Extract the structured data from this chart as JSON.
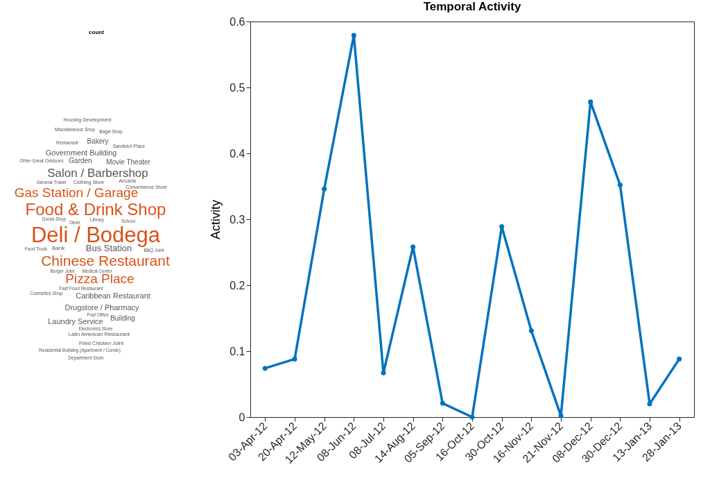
{
  "chart_data": [
    {
      "type": "other",
      "title": "count",
      "annotations": [
        "Housing Development",
        "Miscellaneous Shop",
        "Bagel Shop",
        "Restaurant",
        "Bakery",
        "Sandwich Place",
        "Government Building",
        "Other Great Outdoors",
        "Garden",
        "Movie Theater",
        "Salon / Barbershop",
        "General Travel",
        "Clothing Store",
        "Arcade",
        "Convenience Store",
        "Gas Station / Garage",
        "Food & Drink Shop",
        "Donut Shop",
        "Library",
        "School",
        "Deli / Bodega",
        "Diner",
        "Bank",
        "Bus Station",
        "BBQ Joint",
        "Food Truck",
        "Chinese Restaurant",
        "Burger Joint",
        "Medical Center",
        "Pizza Place",
        "Fast Food Restaurant",
        "Cosmetics Shop",
        "Caribbean Restaurant",
        "Drugstore / Pharmacy",
        "Post Office",
        "Building",
        "Laundry Service",
        "Electronics Store",
        "Latin American Restaurant",
        "Fried Chicken Joint",
        "Residential Building (Apartment / Condo)",
        "Department Store"
      ],
      "colors": [
        "#555555",
        "#555555",
        "#555555",
        "#555555",
        "#555555",
        "#555555",
        "#555555",
        "#555555",
        "#555555",
        "#555555",
        "#555555",
        "#555555",
        "#555555",
        "#555555",
        "#555555",
        "#d95319",
        "#d95319",
        "#555555",
        "#555555",
        "#555555",
        "#d95319",
        "#555555",
        "#555555",
        "#555555",
        "#555555",
        "#555555",
        "#d95319",
        "#555555",
        "#555555",
        "#d95319",
        "#555555",
        "#555555",
        "#555555",
        "#555555",
        "#555555",
        "#555555",
        "#555555",
        "#555555",
        "#555555",
        "#555555",
        "#555555",
        "#555555"
      ]
    },
    {
      "type": "line",
      "title": "Temporal Activity",
      "ylabel": "Activity",
      "categories": [
        "03-Apr-12",
        "20-Apr-12",
        "12-May-12",
        "08-Jun-12",
        "08-Jul-12",
        "14-Aug-12",
        "05-Sep-12",
        "16-Oct-12",
        "30-Oct-12",
        "16-Nov-12",
        "21-Nov-12",
        "08-Dec-12",
        "30-Dec-12",
        "13-Jan-13",
        "28-Jan-13"
      ],
      "series": [
        {
          "color": "#0072bd",
          "values": [
            0.074,
            0.088,
            0.346,
            0.579,
            0.067,
            0.258,
            0.021,
            0.0,
            0.289,
            0.131,
            0.002,
            0.478,
            0.352,
            0.02,
            0.088
          ]
        }
      ],
      "ylim": [
        0,
        0.6
      ],
      "yticks": [
        0,
        0.1,
        0.2,
        0.3,
        0.4,
        0.5,
        0.6
      ],
      "marker": "circle",
      "line_style": "solid",
      "grid": false
    }
  ]
}
